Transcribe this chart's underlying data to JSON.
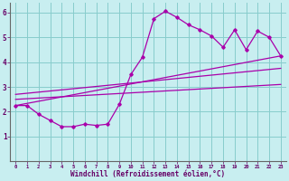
{
  "xlabel": "Windchill (Refroidissement éolien,°C)",
  "bg_color": "#c8eef0",
  "line_color": "#aa00aa",
  "grid_color": "#88cccc",
  "axis_color": "#660066",
  "xlim": [
    -0.5,
    23.5
  ],
  "ylim": [
    0,
    6.4
  ],
  "xticks": [
    0,
    1,
    2,
    3,
    4,
    5,
    6,
    7,
    8,
    9,
    10,
    11,
    12,
    13,
    14,
    15,
    16,
    17,
    18,
    19,
    20,
    21,
    22,
    23
  ],
  "yticks": [
    1,
    2,
    3,
    4,
    5,
    6
  ],
  "main_line_x": [
    0,
    1,
    2,
    3,
    4,
    5,
    6,
    7,
    8,
    9,
    10,
    11,
    12,
    13,
    14,
    15,
    16,
    17,
    18,
    19,
    20,
    21,
    22,
    23
  ],
  "main_line_y": [
    2.25,
    2.25,
    1.9,
    1.65,
    1.4,
    1.4,
    1.5,
    1.45,
    1.5,
    2.3,
    3.5,
    4.2,
    5.75,
    6.05,
    5.8,
    5.5,
    5.3,
    5.05,
    4.6,
    5.3,
    4.5,
    5.25,
    5.0,
    4.25
  ],
  "trend1_x": [
    0,
    23
  ],
  "trend1_y": [
    2.25,
    4.25
  ],
  "trend2_x": [
    0,
    23
  ],
  "trend2_y": [
    2.5,
    3.1
  ],
  "trend3_x": [
    0,
    23
  ],
  "trend3_y": [
    2.7,
    3.75
  ]
}
